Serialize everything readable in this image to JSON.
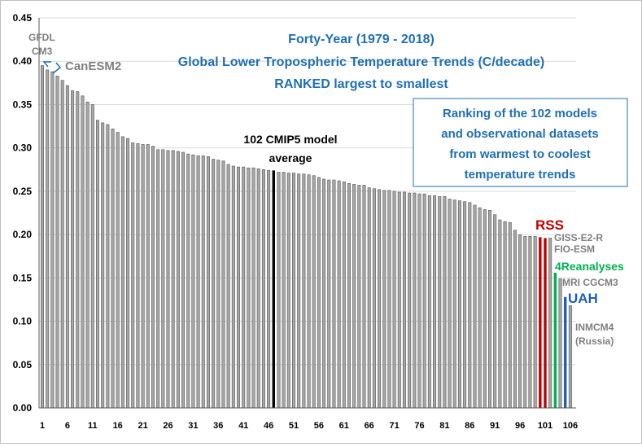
{
  "chart_data": {
    "type": "bar",
    "title": [
      "Forty-Year (1979 - 2018)",
      "Global Lower Tropospheric Temperature Trends (C/decade)",
      "RANKED largest to smallest"
    ],
    "xlabel": "",
    "ylabel": "",
    "ylim": [
      0,
      0.45
    ],
    "y_ticks": [
      "0.00",
      "0.05",
      "0.10",
      "0.15",
      "0.20",
      "0.25",
      "0.30",
      "0.35",
      "0.40",
      "0.45"
    ],
    "x_ticks": [
      "1",
      "6",
      "11",
      "16",
      "21",
      "26",
      "31",
      "36",
      "41",
      "46",
      "51",
      "56",
      "61",
      "66",
      "71",
      "76",
      "81",
      "86",
      "91",
      "96",
      "101",
      "106"
    ],
    "x_range": [
      1,
      106
    ],
    "grid": "horizontal",
    "legend": "none",
    "categories": [
      1,
      2,
      3,
      4,
      5,
      6,
      7,
      8,
      9,
      10,
      11,
      12,
      13,
      14,
      15,
      16,
      17,
      18,
      19,
      20,
      21,
      22,
      23,
      24,
      25,
      26,
      27,
      28,
      29,
      30,
      31,
      32,
      33,
      34,
      35,
      36,
      37,
      38,
      39,
      40,
      41,
      42,
      43,
      44,
      45,
      46,
      47,
      48,
      49,
      50,
      51,
      52,
      53,
      54,
      55,
      56,
      57,
      58,
      59,
      60,
      61,
      62,
      63,
      64,
      65,
      66,
      67,
      68,
      69,
      70,
      71,
      72,
      73,
      74,
      75,
      76,
      77,
      78,
      79,
      80,
      81,
      82,
      83,
      84,
      85,
      86,
      87,
      88,
      89,
      90,
      91,
      92,
      93,
      94,
      95,
      96,
      97,
      98,
      99,
      100,
      101,
      102,
      103,
      104,
      105,
      106
    ],
    "values": [
      0.395,
      0.39,
      0.388,
      0.383,
      0.378,
      0.372,
      0.366,
      0.365,
      0.36,
      0.353,
      0.35,
      0.332,
      0.329,
      0.327,
      0.322,
      0.318,
      0.313,
      0.311,
      0.306,
      0.305,
      0.304,
      0.304,
      0.302,
      0.298,
      0.298,
      0.297,
      0.297,
      0.296,
      0.295,
      0.293,
      0.292,
      0.291,
      0.291,
      0.29,
      0.287,
      0.286,
      0.285,
      0.281,
      0.279,
      0.278,
      0.278,
      0.277,
      0.277,
      0.276,
      0.275,
      0.274,
      0.274,
      0.272,
      0.272,
      0.271,
      0.271,
      0.27,
      0.27,
      0.269,
      0.268,
      0.266,
      0.264,
      0.263,
      0.263,
      0.262,
      0.261,
      0.259,
      0.258,
      0.257,
      0.257,
      0.254,
      0.253,
      0.252,
      0.251,
      0.251,
      0.25,
      0.249,
      0.249,
      0.248,
      0.248,
      0.247,
      0.247,
      0.245,
      0.245,
      0.244,
      0.244,
      0.241,
      0.24,
      0.239,
      0.238,
      0.237,
      0.234,
      0.231,
      0.229,
      0.228,
      0.223,
      0.217,
      0.215,
      0.214,
      0.205,
      0.2,
      0.198,
      0.198,
      0.198,
      0.197,
      0.196,
      0.196,
      0.156,
      0.149,
      0.128,
      0.118
    ],
    "highlights": [
      {
        "index": 47,
        "name": "102 CMIP5 model average",
        "color": "#000000"
      },
      {
        "index": 100,
        "name": "RSS",
        "color": "#c00000"
      },
      {
        "index": 101,
        "name": "RSS",
        "color": "#c00000"
      },
      {
        "index": 103,
        "name": "4Reanalyses",
        "color": "#00b050"
      },
      {
        "index": 105,
        "name": "UAH",
        "color": "#1f5fb4"
      }
    ],
    "colors": {
      "default_bar": "#a6a6a6",
      "bar_outline": "#595959",
      "average": "#000000",
      "rss": "#c00000",
      "reanalyses": "#00b050",
      "uah": "#1f5fb4",
      "title": "#1f6fb4",
      "annotation_gray": "#7f7f7f"
    },
    "box_text": [
      "Ranking of the 102 models",
      "and observational datasets",
      "from warmest to coolest",
      "temperature trends"
    ],
    "annotations": {
      "gfdl_1": "GFDL",
      "gfdl_2": "CM3",
      "canesm": "CanESM2",
      "avg_1": "102 CMIP5 model",
      "avg_2": "average",
      "rss": "RSS",
      "giss": "GISS-E2-R",
      "fio": "FIO-ESM",
      "reanalyses": "4Reanalyses",
      "mri": "MRI CGCM3",
      "uah": "UAH",
      "inmcm_1": "INMCM4",
      "inmcm_2": "(Russia)"
    }
  }
}
